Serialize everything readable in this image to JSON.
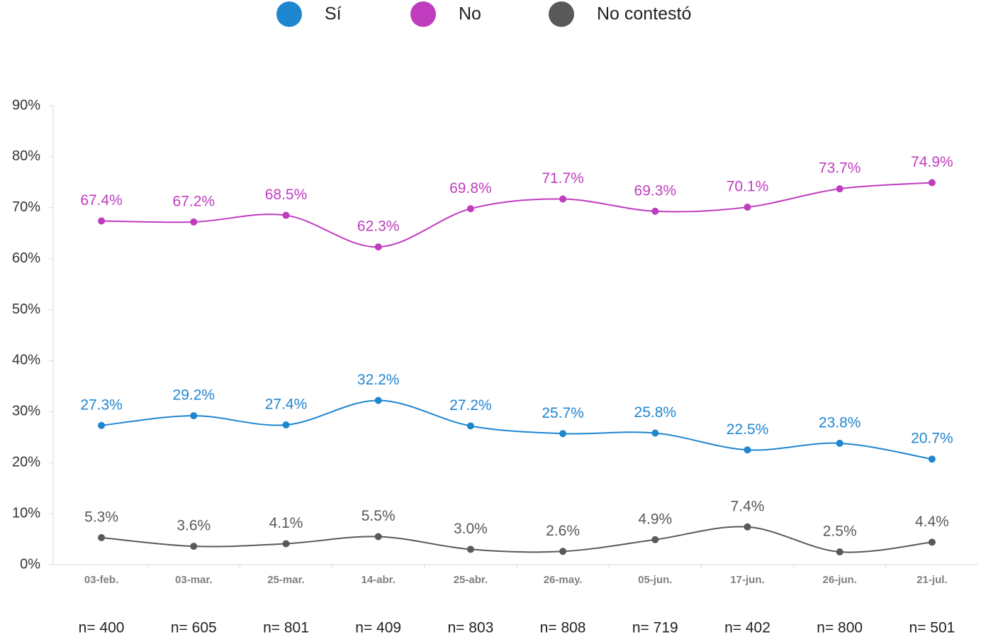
{
  "chart_data": {
    "type": "line",
    "categories": [
      "03-feb.",
      "03-mar.",
      "25-mar.",
      "14-abr.",
      "25-abr.",
      "26-may.",
      "05-jun.",
      "17-jun.",
      "26-jun.",
      "21-jul."
    ],
    "sample_sizes": [
      "n= 400",
      "n= 605",
      "n= 801",
      "n= 409",
      "n= 803",
      "n= 808",
      "n= 719",
      "n= 402",
      "n= 800",
      "n= 501"
    ],
    "series": [
      {
        "name": "Sí",
        "color": "#1f86d0",
        "values": [
          27.3,
          29.2,
          27.4,
          32.2,
          27.2,
          25.7,
          25.8,
          22.5,
          23.8,
          20.7
        ],
        "value_labels": [
          "27.3%",
          "29.2%",
          "27.4%",
          "32.2%",
          "27.2%",
          "25.7%",
          "25.8%",
          "22.5%",
          "23.8%",
          "20.7%"
        ]
      },
      {
        "name": "No",
        "color": "#c03cbf",
        "values": [
          67.4,
          67.2,
          68.5,
          62.3,
          69.8,
          71.7,
          69.3,
          70.1,
          73.7,
          74.9
        ],
        "value_labels": [
          "67.4%",
          "67.2%",
          "68.5%",
          "62.3%",
          "69.8%",
          "71.7%",
          "69.3%",
          "70.1%",
          "73.7%",
          "74.9%"
        ]
      },
      {
        "name": "No contestó",
        "color": "#595959",
        "values": [
          5.3,
          3.6,
          4.1,
          5.5,
          3.0,
          2.6,
          4.9,
          7.4,
          2.5,
          4.4
        ],
        "value_labels": [
          "5.3%",
          "3.6%",
          "4.1%",
          "5.5%",
          "3.0%",
          "2.6%",
          "4.9%",
          "7.4%",
          "2.5%",
          "4.4%"
        ]
      }
    ],
    "ylim": [
      0,
      90
    ],
    "yticks": [
      {
        "value": 0,
        "label": "0%"
      },
      {
        "value": 10,
        "label": "10%"
      },
      {
        "value": 20,
        "label": "20%"
      },
      {
        "value": 30,
        "label": "30%"
      },
      {
        "value": 40,
        "label": "40%"
      },
      {
        "value": 50,
        "label": "50%"
      },
      {
        "value": 60,
        "label": "60%"
      },
      {
        "value": 70,
        "label": "70%"
      },
      {
        "value": 80,
        "label": "80%"
      },
      {
        "value": 90,
        "label": "90%"
      }
    ],
    "grid": false,
    "legend": "top",
    "smooth": true
  }
}
